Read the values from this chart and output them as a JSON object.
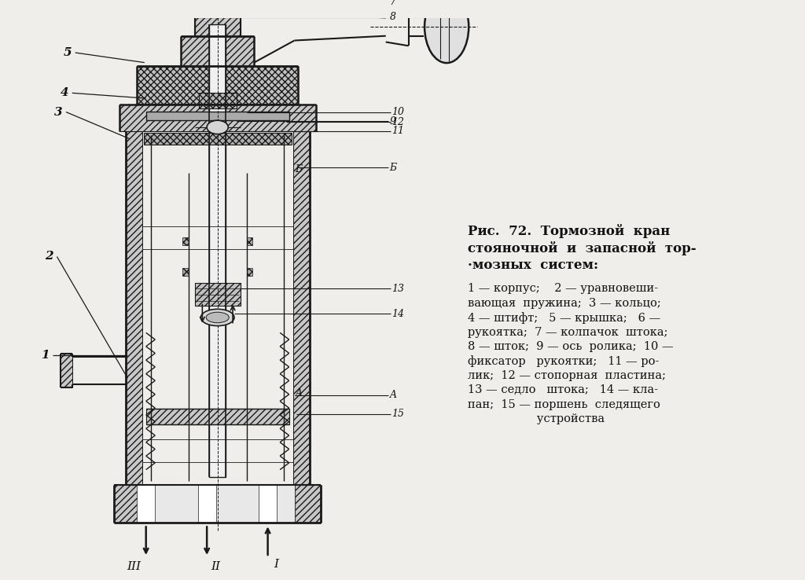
{
  "bg_color": "#f0eeea",
  "line_color": "#1a1a1a",
  "text_color": "#111111",
  "title_lines": [
    "Рис.  72.  Тормозной  кран",
    "стояночной  и  запасной  тор-",
    "·мозных  систем:"
  ],
  "desc_lines": [
    "1 — корпус;    2 — уравновеши-",
    "вающая  пружина;  3 — кольцо;",
    "4 — штифт;   5 — крышка;   6 —",
    "рукоятка;  7 — колпачок  штока;",
    "8 — шток;  9 — ось  ролика;  10 —",
    "фиксатор   рукоятки;   11 — ро-",
    "лик;  12 — стопорная  пластина;",
    "13 — седло   штока;   14 — кла-",
    "пан;  15 — поршень  следящего",
    "                   устройства"
  ],
  "hatch_density": 4
}
